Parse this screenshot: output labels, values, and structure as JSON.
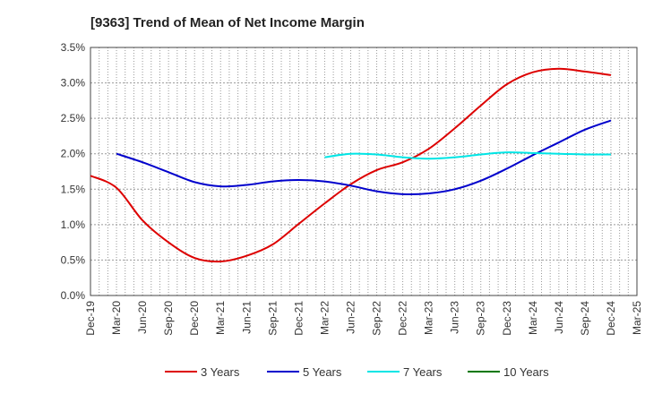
{
  "chart_data": {
    "type": "line",
    "title": "[9363]  Trend of Mean of Net Income Margin",
    "x": [
      "Dec-19",
      "Mar-20",
      "Jun-20",
      "Sep-20",
      "Dec-20",
      "Mar-21",
      "Jun-21",
      "Sep-21",
      "Dec-21",
      "Mar-22",
      "Jun-22",
      "Sep-22",
      "Dec-22",
      "Mar-23",
      "Jun-23",
      "Sep-23",
      "Dec-23",
      "Mar-24",
      "Jun-24",
      "Sep-24",
      "Dec-24",
      "Mar-25"
    ],
    "ylim": [
      0,
      3.5
    ],
    "yticks": [
      "0.0%",
      "0.5%",
      "1.0%",
      "1.5%",
      "2.0%",
      "2.5%",
      "3.0%",
      "3.5%"
    ],
    "grid": true,
    "legend_position": "bottom",
    "series": [
      {
        "name": "3 Years",
        "color": "#dd0000",
        "values": [
          1.69,
          1.52,
          1.06,
          0.75,
          0.53,
          0.48,
          0.56,
          0.72,
          1.01,
          1.3,
          1.57,
          1.77,
          1.88,
          2.07,
          2.36,
          2.68,
          2.98,
          3.15,
          3.2,
          3.16,
          3.11,
          null
        ]
      },
      {
        "name": "5 Years",
        "color": "#0000cc",
        "values": [
          null,
          2.0,
          1.88,
          1.74,
          1.6,
          1.54,
          1.56,
          1.61,
          1.63,
          1.61,
          1.55,
          1.47,
          1.43,
          1.44,
          1.5,
          1.62,
          1.79,
          1.98,
          2.16,
          2.34,
          2.47,
          null
        ]
      },
      {
        "name": "7 Years",
        "color": "#00e5e5",
        "values": [
          null,
          null,
          null,
          null,
          null,
          null,
          null,
          null,
          null,
          1.95,
          2.0,
          1.99,
          1.95,
          1.93,
          1.95,
          1.99,
          2.02,
          2.01,
          2.0,
          1.99,
          1.99,
          null
        ]
      },
      {
        "name": "10 Years",
        "color": "#007700",
        "values": [
          null,
          null,
          null,
          null,
          null,
          null,
          null,
          null,
          null,
          null,
          null,
          null,
          null,
          null,
          null,
          null,
          null,
          null,
          null,
          null,
          null,
          null
        ]
      }
    ]
  }
}
